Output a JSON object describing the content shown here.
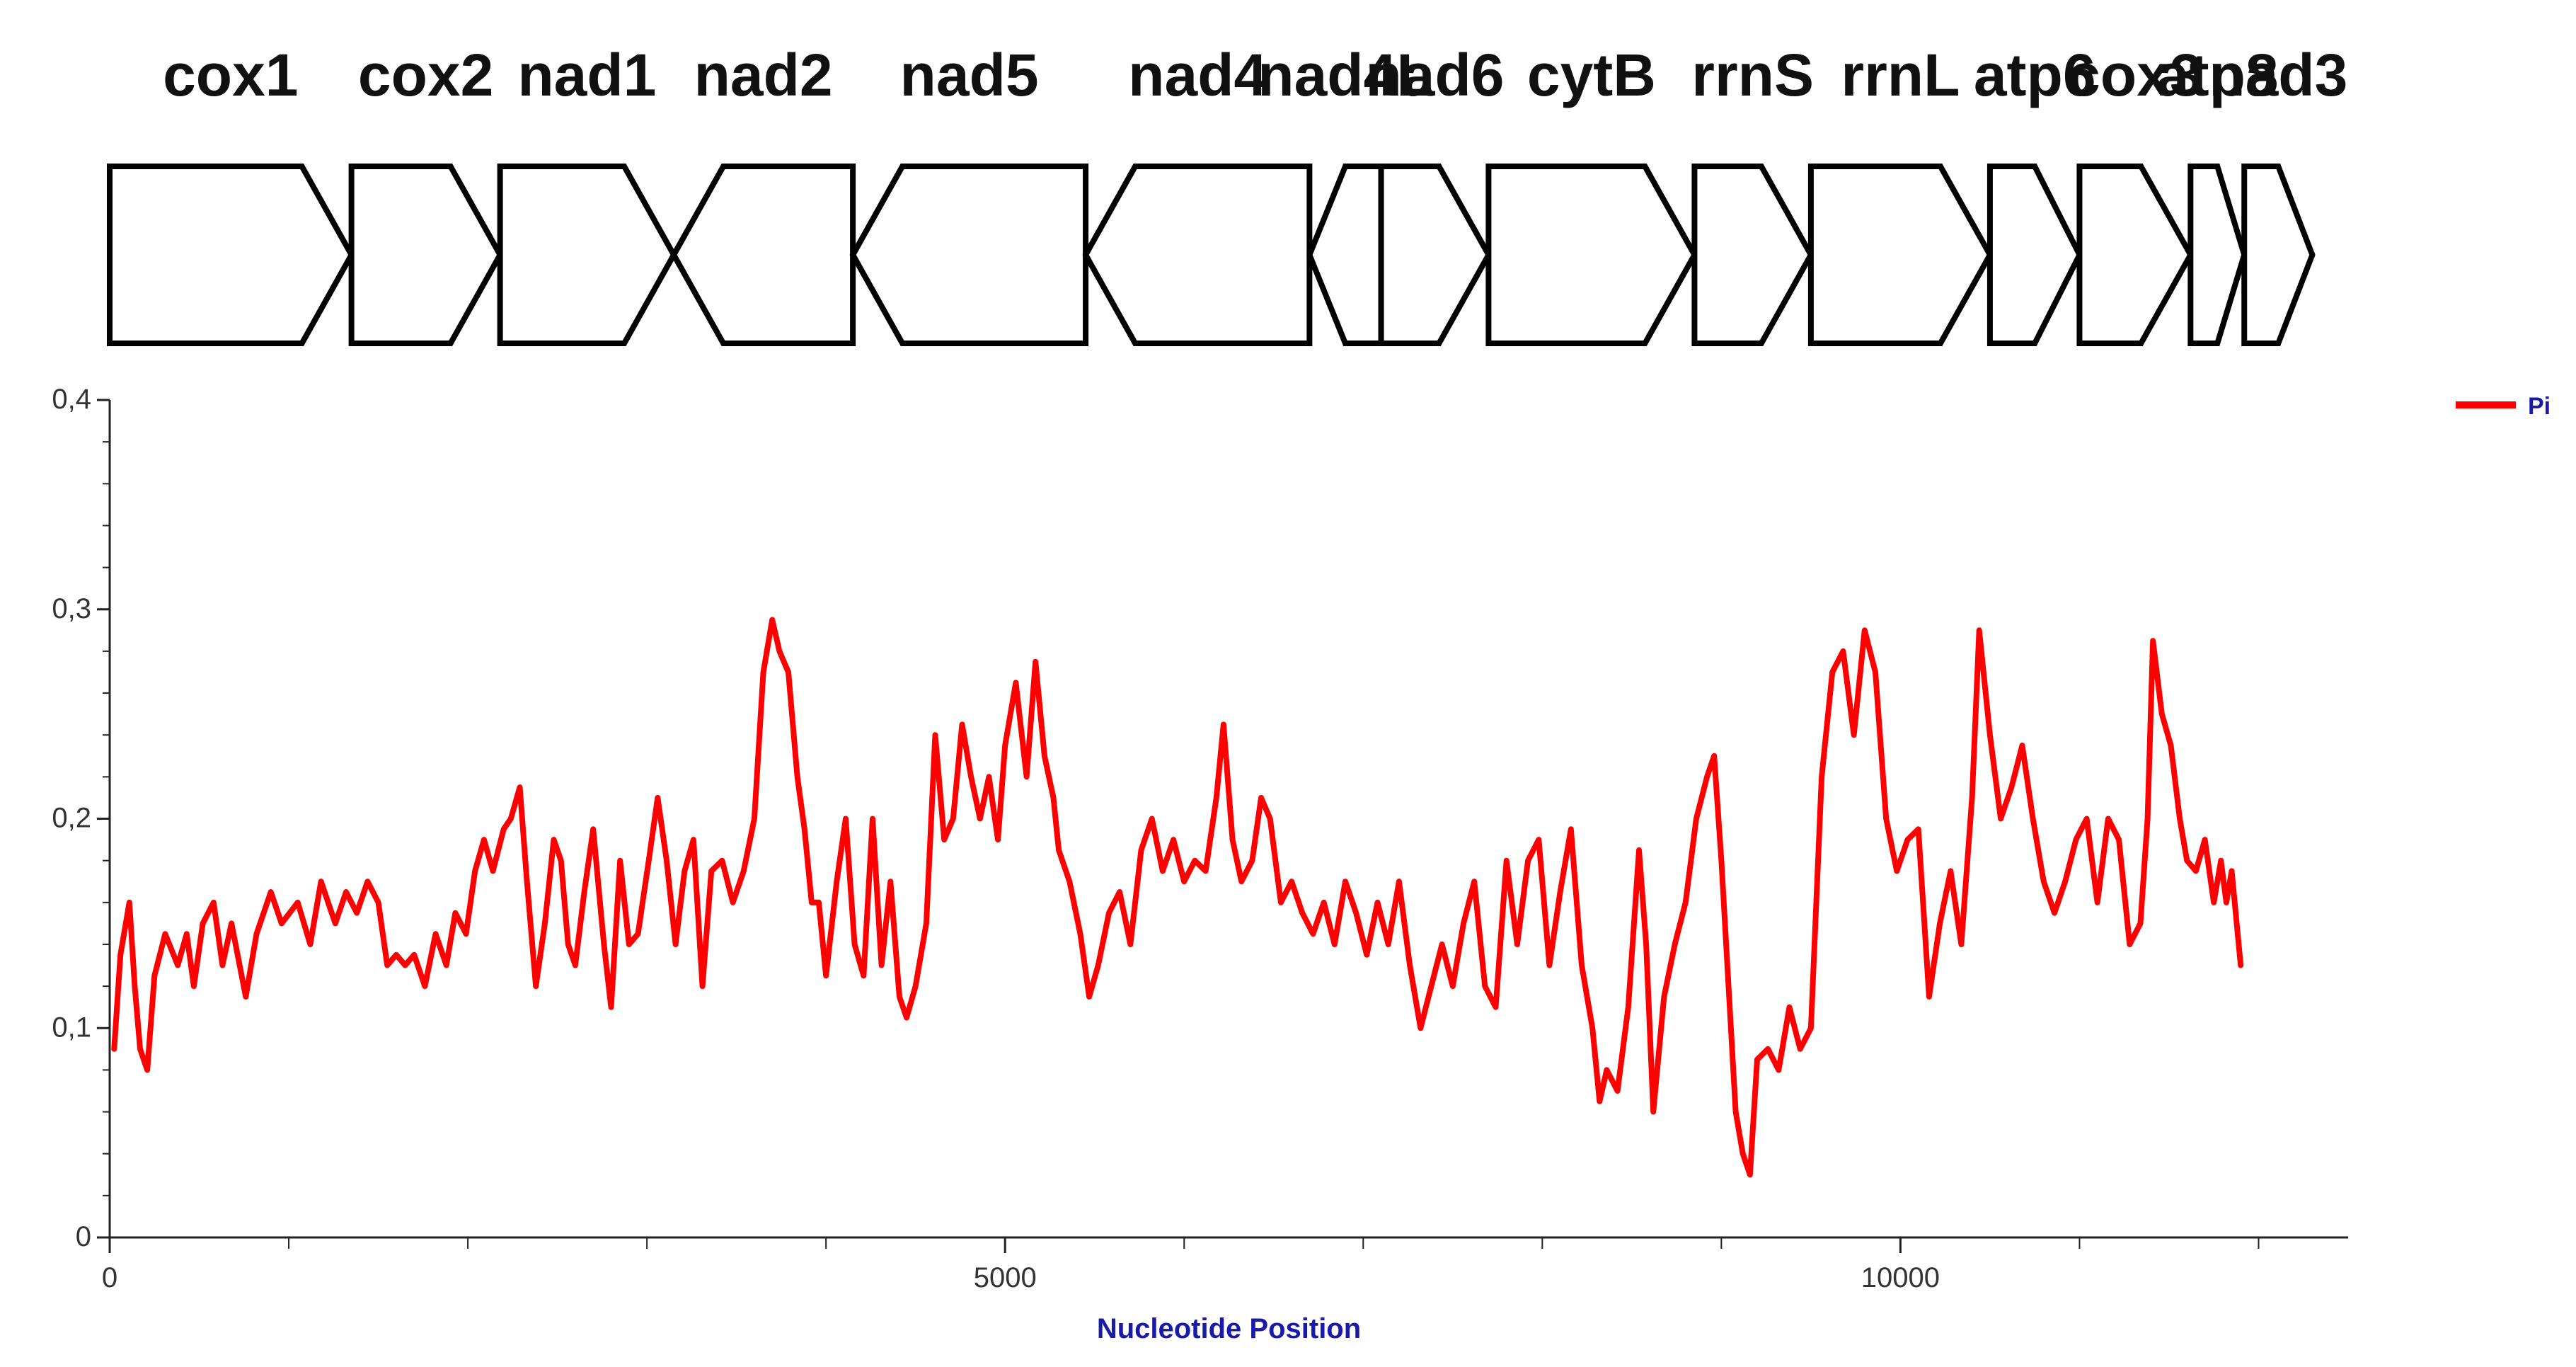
{
  "chart_data": {
    "type": "line",
    "xlabel": "Nucleotide Position",
    "ylabel": "",
    "xlim": [
      0,
      12500
    ],
    "ylim": [
      0,
      0.4
    ],
    "x_ticks": [
      0,
      5000,
      10000
    ],
    "x_tick_labels": [
      "0",
      "5000",
      "10000"
    ],
    "y_ticks": [
      0,
      0.1,
      0.2,
      0.3,
      0.4
    ],
    "y_tick_labels": [
      "0",
      "0,1",
      "0,2",
      "0,3",
      "0,4"
    ],
    "legend": {
      "placement": "top-right"
    },
    "series": [
      {
        "name": "Pi",
        "color": "#ff0000",
        "points": [
          [
            25,
            0.09
          ],
          [
            60,
            0.135
          ],
          [
            110,
            0.16
          ],
          [
            140,
            0.12
          ],
          [
            170,
            0.09
          ],
          [
            210,
            0.08
          ],
          [
            250,
            0.125
          ],
          [
            310,
            0.145
          ],
          [
            380,
            0.13
          ],
          [
            430,
            0.145
          ],
          [
            470,
            0.12
          ],
          [
            520,
            0.15
          ],
          [
            580,
            0.16
          ],
          [
            630,
            0.13
          ],
          [
            680,
            0.15
          ],
          [
            760,
            0.115
          ],
          [
            820,
            0.145
          ],
          [
            900,
            0.165
          ],
          [
            960,
            0.15
          ],
          [
            1050,
            0.16
          ],
          [
            1120,
            0.14
          ],
          [
            1180,
            0.17
          ],
          [
            1260,
            0.15
          ],
          [
            1320,
            0.165
          ],
          [
            1380,
            0.155
          ],
          [
            1440,
            0.17
          ],
          [
            1500,
            0.16
          ],
          [
            1550,
            0.13
          ],
          [
            1600,
            0.135
          ],
          [
            1650,
            0.13
          ],
          [
            1700,
            0.135
          ],
          [
            1760,
            0.12
          ],
          [
            1820,
            0.145
          ],
          [
            1880,
            0.13
          ],
          [
            1930,
            0.155
          ],
          [
            1990,
            0.145
          ],
          [
            2040,
            0.175
          ],
          [
            2090,
            0.19
          ],
          [
            2140,
            0.175
          ],
          [
            2200,
            0.195
          ],
          [
            2240,
            0.2
          ],
          [
            2290,
            0.215
          ],
          [
            2330,
            0.17
          ],
          [
            2380,
            0.12
          ],
          [
            2430,
            0.15
          ],
          [
            2480,
            0.19
          ],
          [
            2520,
            0.18
          ],
          [
            2560,
            0.14
          ],
          [
            2600,
            0.13
          ],
          [
            2650,
            0.165
          ],
          [
            2700,
            0.195
          ],
          [
            2760,
            0.14
          ],
          [
            2800,
            0.11
          ],
          [
            2850,
            0.18
          ],
          [
            2900,
            0.14
          ],
          [
            2950,
            0.145
          ],
          [
            3010,
            0.18
          ],
          [
            3060,
            0.21
          ],
          [
            3110,
            0.18
          ],
          [
            3160,
            0.14
          ],
          [
            3210,
            0.175
          ],
          [
            3260,
            0.19
          ],
          [
            3310,
            0.12
          ],
          [
            3360,
            0.175
          ],
          [
            3420,
            0.18
          ],
          [
            3480,
            0.16
          ],
          [
            3540,
            0.175
          ],
          [
            3600,
            0.2
          ],
          [
            3650,
            0.27
          ],
          [
            3700,
            0.295
          ],
          [
            3740,
            0.28
          ],
          [
            3790,
            0.27
          ],
          [
            3840,
            0.22
          ],
          [
            3880,
            0.195
          ],
          [
            3920,
            0.16
          ],
          [
            3960,
            0.16
          ],
          [
            4000,
            0.125
          ],
          [
            4060,
            0.17
          ],
          [
            4110,
            0.2
          ],
          [
            4160,
            0.14
          ],
          [
            4210,
            0.125
          ],
          [
            4260,
            0.2
          ],
          [
            4310,
            0.13
          ],
          [
            4360,
            0.17
          ],
          [
            4410,
            0.115
          ],
          [
            4450,
            0.105
          ],
          [
            4500,
            0.12
          ],
          [
            4560,
            0.15
          ],
          [
            4610,
            0.24
          ],
          [
            4660,
            0.19
          ],
          [
            4710,
            0.2
          ],
          [
            4760,
            0.245
          ],
          [
            4810,
            0.22
          ],
          [
            4860,
            0.2
          ],
          [
            4910,
            0.22
          ],
          [
            4960,
            0.19
          ],
          [
            5000,
            0.235
          ],
          [
            5060,
            0.265
          ],
          [
            5120,
            0.22
          ],
          [
            5170,
            0.275
          ],
          [
            5220,
            0.23
          ],
          [
            5270,
            0.21
          ],
          [
            5300,
            0.185
          ],
          [
            5360,
            0.17
          ],
          [
            5420,
            0.145
          ],
          [
            5470,
            0.115
          ],
          [
            5520,
            0.13
          ],
          [
            5580,
            0.155
          ],
          [
            5640,
            0.165
          ],
          [
            5700,
            0.14
          ],
          [
            5760,
            0.185
          ],
          [
            5820,
            0.2
          ],
          [
            5880,
            0.175
          ],
          [
            5940,
            0.19
          ],
          [
            6000,
            0.17
          ],
          [
            6060,
            0.18
          ],
          [
            6120,
            0.175
          ],
          [
            6180,
            0.21
          ],
          [
            6220,
            0.245
          ],
          [
            6270,
            0.19
          ],
          [
            6320,
            0.17
          ],
          [
            6380,
            0.18
          ],
          [
            6430,
            0.21
          ],
          [
            6480,
            0.2
          ],
          [
            6540,
            0.16
          ],
          [
            6600,
            0.17
          ],
          [
            6660,
            0.155
          ],
          [
            6720,
            0.145
          ],
          [
            6780,
            0.16
          ],
          [
            6840,
            0.14
          ],
          [
            6900,
            0.17
          ],
          [
            6960,
            0.155
          ],
          [
            7020,
            0.135
          ],
          [
            7080,
            0.16
          ],
          [
            7140,
            0.14
          ],
          [
            7200,
            0.17
          ],
          [
            7260,
            0.13
          ],
          [
            7320,
            0.1
          ],
          [
            7380,
            0.12
          ],
          [
            7440,
            0.14
          ],
          [
            7500,
            0.12
          ],
          [
            7560,
            0.15
          ],
          [
            7620,
            0.17
          ],
          [
            7680,
            0.12
          ],
          [
            7740,
            0.11
          ],
          [
            7800,
            0.18
          ],
          [
            7860,
            0.14
          ],
          [
            7920,
            0.18
          ],
          [
            7980,
            0.19
          ],
          [
            8040,
            0.13
          ],
          [
            8100,
            0.165
          ],
          [
            8160,
            0.195
          ],
          [
            8220,
            0.13
          ],
          [
            8280,
            0.1
          ],
          [
            8320,
            0.065
          ],
          [
            8360,
            0.08
          ],
          [
            8420,
            0.07
          ],
          [
            8480,
            0.11
          ],
          [
            8540,
            0.185
          ],
          [
            8580,
            0.14
          ],
          [
            8620,
            0.06
          ],
          [
            8680,
            0.115
          ],
          [
            8740,
            0.14
          ],
          [
            8800,
            0.16
          ],
          [
            8860,
            0.2
          ],
          [
            8920,
            0.22
          ],
          [
            8960,
            0.23
          ],
          [
            9000,
            0.18
          ],
          [
            9040,
            0.12
          ],
          [
            9080,
            0.06
          ],
          [
            9120,
            0.04
          ],
          [
            9160,
            0.03
          ],
          [
            9200,
            0.085
          ],
          [
            9260,
            0.09
          ],
          [
            9320,
            0.08
          ],
          [
            9380,
            0.11
          ],
          [
            9440,
            0.09
          ],
          [
            9500,
            0.1
          ],
          [
            9560,
            0.22
          ],
          [
            9620,
            0.27
          ],
          [
            9680,
            0.28
          ],
          [
            9740,
            0.24
          ],
          [
            9800,
            0.29
          ],
          [
            9860,
            0.27
          ],
          [
            9920,
            0.2
          ],
          [
            9980,
            0.175
          ],
          [
            10040,
            0.19
          ],
          [
            10100,
            0.195
          ],
          [
            10160,
            0.115
          ],
          [
            10220,
            0.15
          ],
          [
            10280,
            0.175
          ],
          [
            10340,
            0.14
          ],
          [
            10400,
            0.21
          ],
          [
            10440,
            0.29
          ],
          [
            10500,
            0.24
          ],
          [
            10560,
            0.2
          ],
          [
            10620,
            0.215
          ],
          [
            10680,
            0.235
          ],
          [
            10740,
            0.2
          ],
          [
            10800,
            0.17
          ],
          [
            10860,
            0.155
          ],
          [
            10920,
            0.17
          ],
          [
            10980,
            0.19
          ],
          [
            11040,
            0.2
          ],
          [
            11100,
            0.16
          ],
          [
            11160,
            0.2
          ],
          [
            11220,
            0.19
          ],
          [
            11280,
            0.14
          ],
          [
            11340,
            0.15
          ],
          [
            11380,
            0.2
          ],
          [
            11410,
            0.285
          ],
          [
            11460,
            0.25
          ],
          [
            11510,
            0.235
          ],
          [
            11560,
            0.2
          ],
          [
            11600,
            0.18
          ],
          [
            11650,
            0.175
          ],
          [
            11700,
            0.19
          ],
          [
            11750,
            0.16
          ],
          [
            11790,
            0.18
          ],
          [
            11820,
            0.16
          ],
          [
            11850,
            0.175
          ],
          [
            11900,
            0.13
          ]
        ]
      }
    ],
    "gene_map": [
      {
        "label": "cox1",
        "start": 0,
        "end": 1350,
        "direction": "forward"
      },
      {
        "label": "cox2",
        "start": 1350,
        "end": 2180,
        "direction": "forward"
      },
      {
        "label": "nad1",
        "start": 2180,
        "end": 3150,
        "direction": "forward"
      },
      {
        "label": "nad2",
        "start": 3150,
        "end": 4150,
        "direction": "reverse"
      },
      {
        "label": "nad5",
        "start": 4150,
        "end": 5450,
        "direction": "reverse"
      },
      {
        "label": "nad4",
        "start": 5450,
        "end": 6700,
        "direction": "reverse"
      },
      {
        "label": "nad4L",
        "start": 6700,
        "end": 7100,
        "direction": "reverse"
      },
      {
        "label": "nad6",
        "start": 7100,
        "end": 7700,
        "direction": "forward"
      },
      {
        "label": "cytB",
        "start": 7700,
        "end": 8850,
        "direction": "forward"
      },
      {
        "label": "rrnS",
        "start": 8850,
        "end": 9500,
        "direction": "forward"
      },
      {
        "label": "rrnL",
        "start": 9500,
        "end": 10500,
        "direction": "forward"
      },
      {
        "label": "atp6",
        "start": 10500,
        "end": 11000,
        "direction": "forward"
      },
      {
        "label": "cox3",
        "start": 11000,
        "end": 11620,
        "direction": "forward"
      },
      {
        "label": "atp8",
        "start": 11620,
        "end": 11920,
        "direction": "forward"
      },
      {
        "label": "nad3",
        "start": 11920,
        "end": 12300,
        "direction": "forward"
      }
    ]
  }
}
